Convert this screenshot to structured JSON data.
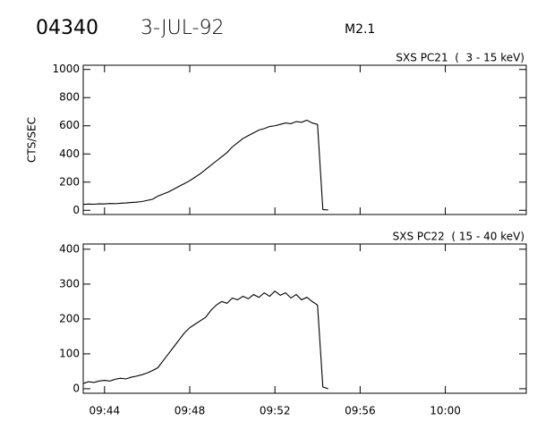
{
  "header": {
    "event": "04340",
    "date": "3-JUL-92",
    "class": "M2.1"
  },
  "chart_data": [
    {
      "type": "line",
      "title": "SXS PC21  (  3 - 15 keV)",
      "y_label": "CTS/SEC",
      "color": "#000000",
      "x": [
        583,
        583.25,
        583.5,
        583.75,
        584,
        584.25,
        584.5,
        584.75,
        585,
        585.25,
        585.5,
        585.75,
        586,
        586.25,
        586.5,
        586.75,
        587,
        587.25,
        587.5,
        587.75,
        588,
        588.25,
        588.5,
        588.75,
        589,
        589.25,
        589.5,
        589.75,
        590,
        590.25,
        590.5,
        590.75,
        591,
        591.25,
        591.5,
        591.75,
        592,
        592.25,
        592.5,
        592.75,
        593,
        593.25,
        593.5,
        593.75,
        594,
        594.25,
        594.5
      ],
      "values": [
        42,
        44,
        43,
        46,
        45,
        48,
        47,
        50,
        52,
        55,
        58,
        62,
        70,
        78,
        100,
        115,
        130,
        150,
        170,
        190,
        210,
        235,
        260,
        290,
        320,
        350,
        380,
        410,
        450,
        480,
        510,
        530,
        550,
        570,
        580,
        595,
        600,
        610,
        620,
        615,
        630,
        625,
        640,
        620,
        610,
        5,
        2
      ],
      "xlim": [
        583,
        603.8
      ],
      "ylim": [
        -30,
        1030
      ],
      "xticks": [
        {
          "value": 584,
          "label": "09:44"
        },
        {
          "value": 588,
          "label": "09:48"
        },
        {
          "value": 592,
          "label": "09:52"
        },
        {
          "value": 596,
          "label": "09:56"
        },
        {
          "value": 600,
          "label": "10:00"
        }
      ],
      "yticks": [
        0,
        200,
        400,
        600,
        800,
        1000
      ]
    },
    {
      "type": "line",
      "title": "SXS PC22  ( 15 - 40 keV)",
      "color": "#000000",
      "x": [
        583,
        583.25,
        583.5,
        583.75,
        584,
        584.25,
        584.5,
        584.75,
        585,
        585.25,
        585.5,
        585.75,
        586,
        586.25,
        586.5,
        586.75,
        587,
        587.25,
        587.5,
        587.75,
        588,
        588.25,
        588.5,
        588.75,
        589,
        589.25,
        589.5,
        589.75,
        590,
        590.25,
        590.5,
        590.75,
        591,
        591.25,
        591.5,
        591.75,
        592,
        592.25,
        592.5,
        592.75,
        593,
        593.25,
        593.5,
        593.75,
        594,
        594.25,
        594.5
      ],
      "values": [
        15,
        20,
        18,
        22,
        24,
        22,
        27,
        30,
        28,
        33,
        36,
        40,
        45,
        52,
        60,
        80,
        100,
        120,
        140,
        160,
        175,
        185,
        195,
        205,
        225,
        240,
        250,
        245,
        260,
        255,
        265,
        258,
        270,
        262,
        275,
        265,
        280,
        268,
        275,
        260,
        270,
        255,
        262,
        250,
        240,
        5,
        0
      ],
      "xlim": [
        583,
        603.8
      ],
      "ylim": [
        -13,
        415
      ],
      "xticks": [
        {
          "value": 584,
          "label": "09:44"
        },
        {
          "value": 588,
          "label": "09:48"
        },
        {
          "value": 592,
          "label": "09:52"
        },
        {
          "value": 596,
          "label": "09:56"
        },
        {
          "value": 600,
          "label": "10:00"
        }
      ],
      "yticks": [
        0,
        100,
        200,
        300,
        400
      ]
    }
  ]
}
